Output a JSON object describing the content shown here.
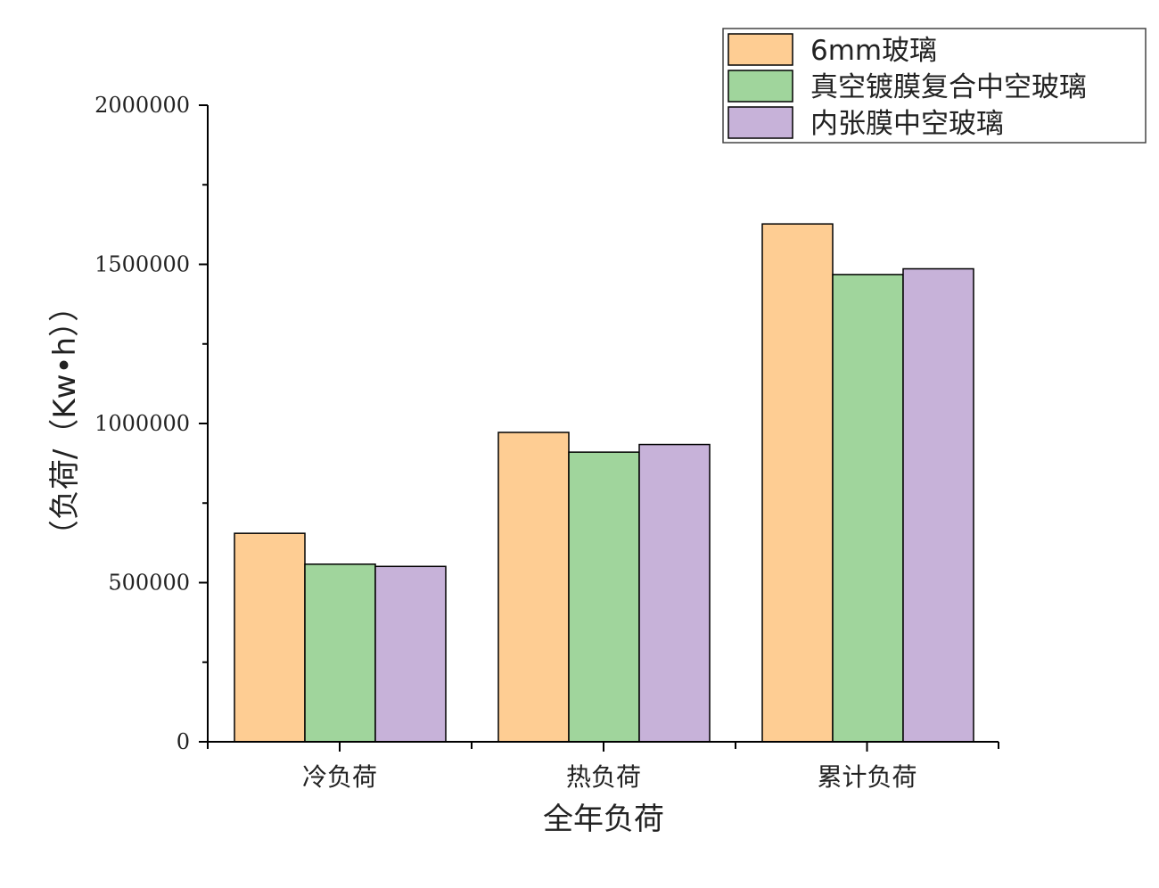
{
  "chart_data": {
    "type": "bar",
    "title": "",
    "xlabel": "全年负荷",
    "ylabel": "（负荷/（Kw•h））",
    "categories": [
      "冷负荷",
      "热负荷",
      "累计负荷"
    ],
    "series": [
      {
        "name": "6mm玻璃",
        "color": "#FECD93",
        "values": [
          655000,
          972000,
          1627000
        ]
      },
      {
        "name": "真空镀膜复合中空玻璃",
        "color": "#A0D59C",
        "values": [
          558000,
          910000,
          1468000
        ]
      },
      {
        "name": "内张膜中空玻璃",
        "color": "#C7B2D9",
        "values": [
          551000,
          934000,
          1486000
        ]
      }
    ],
    "ylim": [
      0,
      2000000
    ],
    "yticks": [
      "0",
      "500000",
      "1000000",
      "1500000",
      "2000000"
    ],
    "grid": false,
    "legend_position": "top-right"
  }
}
